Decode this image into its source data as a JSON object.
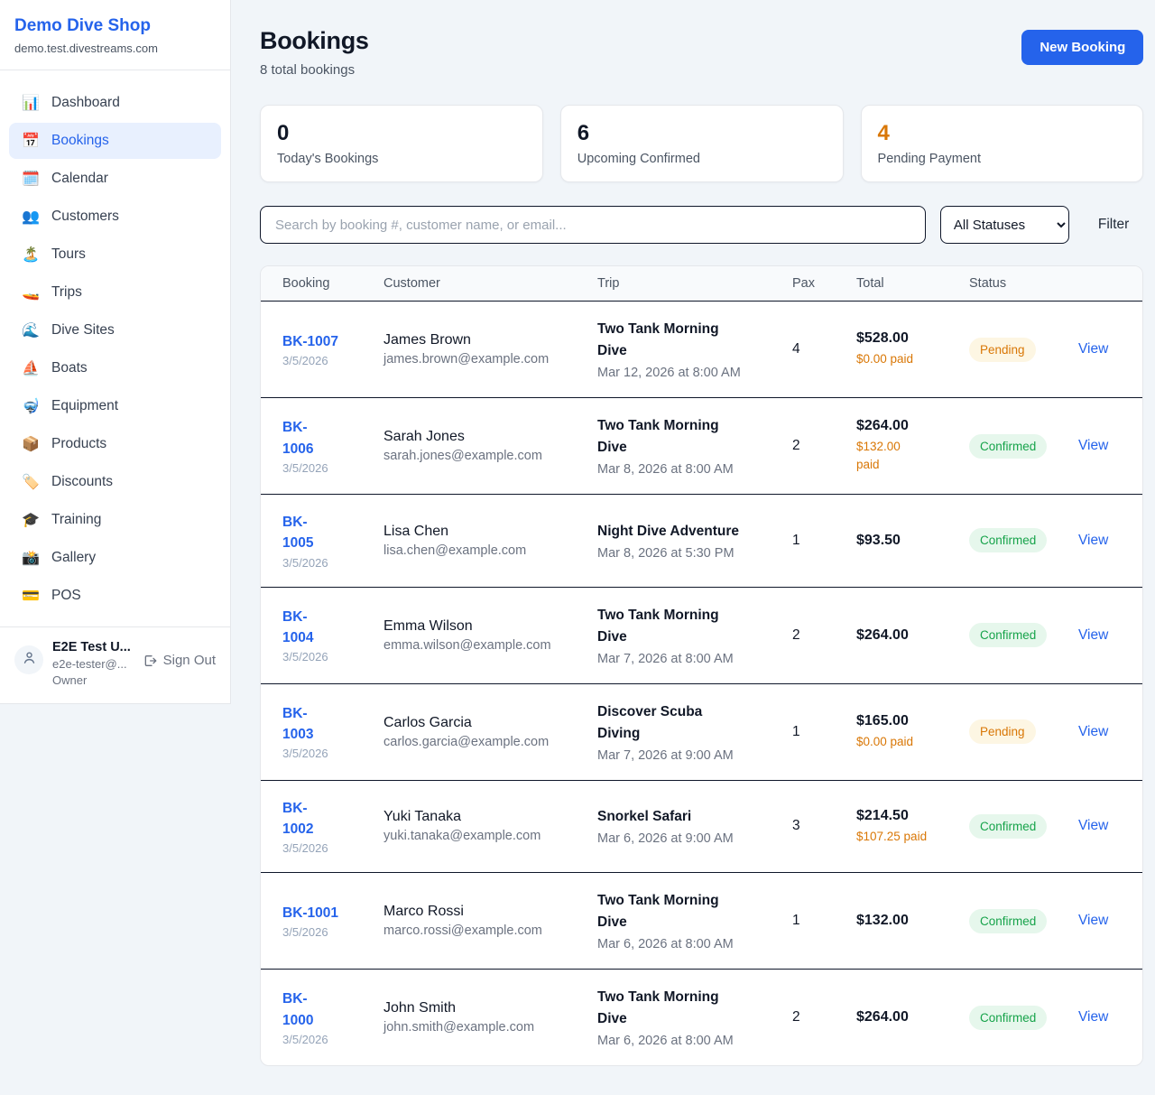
{
  "sidebar": {
    "shop_name": "Demo Dive Shop",
    "shop_domain": "demo.test.divestreams.com",
    "items": [
      {
        "icon_name": "bar-chart-icon",
        "glyph": "📊",
        "label": "Dashboard",
        "active": false
      },
      {
        "icon_name": "calendar-date-icon",
        "glyph": "📅",
        "label": "Bookings",
        "active": true
      },
      {
        "icon_name": "calendar-icon",
        "glyph": "🗓️",
        "label": "Calendar",
        "active": false
      },
      {
        "icon_name": "people-icon",
        "glyph": "👥",
        "label": "Customers",
        "active": false
      },
      {
        "icon_name": "island-icon",
        "glyph": "🏝️",
        "label": "Tours",
        "active": false
      },
      {
        "icon_name": "speedboat-icon",
        "glyph": "🚤",
        "label": "Trips",
        "active": false
      },
      {
        "icon_name": "wave-icon",
        "glyph": "🌊",
        "label": "Dive Sites",
        "active": false
      },
      {
        "icon_name": "sailboat-icon",
        "glyph": "⛵",
        "label": "Boats",
        "active": false
      },
      {
        "icon_name": "dive-mask-icon",
        "glyph": "🤿",
        "label": "Equipment",
        "active": false
      },
      {
        "icon_name": "package-icon",
        "glyph": "📦",
        "label": "Products",
        "active": false
      },
      {
        "icon_name": "tag-icon",
        "glyph": "🏷️",
        "label": "Discounts",
        "active": false
      },
      {
        "icon_name": "graduation-cap-icon",
        "glyph": "🎓",
        "label": "Training",
        "active": false
      },
      {
        "icon_name": "camera-icon",
        "glyph": "📸",
        "label": "Gallery",
        "active": false
      },
      {
        "icon_name": "credit-card-icon",
        "glyph": "💳",
        "label": "POS",
        "active": false
      }
    ],
    "user": {
      "name": "E2E Test U...",
      "email": "e2e-tester@...",
      "role": "Owner",
      "sign_out_label": "Sign Out"
    }
  },
  "header": {
    "title": "Bookings",
    "subtitle": "8 total bookings",
    "new_booking_label": "New Booking"
  },
  "stats": [
    {
      "value": "0",
      "label": "Today's Bookings",
      "value_color": "#111827"
    },
    {
      "value": "6",
      "label": "Upcoming Confirmed",
      "value_color": "#111827"
    },
    {
      "value": "4",
      "label": "Pending Payment",
      "value_color": "#d97706"
    }
  ],
  "filters": {
    "search_placeholder": "Search by booking #, customer name, or email...",
    "status_selected": "All Statuses",
    "filter_label": "Filter"
  },
  "table": {
    "columns": [
      "Booking",
      "Customer",
      "Trip",
      "Pax",
      "Total",
      "Status"
    ],
    "rows": [
      {
        "booking_lines": [
          "BK-1007"
        ],
        "booking_date": "3/5/2026",
        "customer_name": "James Brown",
        "customer_email": "james.brown@example.com",
        "trip_name_lines": [
          "Two Tank Morning",
          "Dive"
        ],
        "trip_datetime": "Mar 12, 2026 at 8:00 AM",
        "pax": "4",
        "total": "$528.00",
        "paid_lines": [
          "$0.00 paid"
        ],
        "status": "Pending",
        "view_label": "View"
      },
      {
        "booking_lines": [
          "BK-",
          "1006"
        ],
        "booking_date": "3/5/2026",
        "customer_name": "Sarah Jones",
        "customer_email": "sarah.jones@example.com",
        "trip_name_lines": [
          "Two Tank Morning",
          "Dive"
        ],
        "trip_datetime": "Mar 8, 2026 at 8:00 AM",
        "pax": "2",
        "total": "$264.00",
        "paid_lines": [
          "$132.00",
          "paid"
        ],
        "status": "Confirmed",
        "view_label": "View"
      },
      {
        "booking_lines": [
          "BK-",
          "1005"
        ],
        "booking_date": "3/5/2026",
        "customer_name": "Lisa Chen",
        "customer_email": "lisa.chen@example.com",
        "trip_name_lines": [
          "Night Dive Adventure"
        ],
        "trip_datetime": "Mar 8, 2026 at 5:30 PM",
        "pax": "1",
        "total": "$93.50",
        "paid_lines": null,
        "status": "Confirmed",
        "view_label": "View"
      },
      {
        "booking_lines": [
          "BK-",
          "1004"
        ],
        "booking_date": "3/5/2026",
        "customer_name": "Emma Wilson",
        "customer_email": "emma.wilson@example.com",
        "trip_name_lines": [
          "Two Tank Morning",
          "Dive"
        ],
        "trip_datetime": "Mar 7, 2026 at 8:00 AM",
        "pax": "2",
        "total": "$264.00",
        "paid_lines": null,
        "status": "Confirmed",
        "view_label": "View"
      },
      {
        "booking_lines": [
          "BK-",
          "1003"
        ],
        "booking_date": "3/5/2026",
        "customer_name": "Carlos Garcia",
        "customer_email": "carlos.garcia@example.com",
        "trip_name_lines": [
          "Discover Scuba",
          "Diving"
        ],
        "trip_datetime": "Mar 7, 2026 at 9:00 AM",
        "pax": "1",
        "total": "$165.00",
        "paid_lines": [
          "$0.00 paid"
        ],
        "status": "Pending",
        "view_label": "View"
      },
      {
        "booking_lines": [
          "BK-",
          "1002"
        ],
        "booking_date": "3/5/2026",
        "customer_name": "Yuki Tanaka",
        "customer_email": "yuki.tanaka@example.com",
        "trip_name_lines": [
          "Snorkel Safari"
        ],
        "trip_datetime": "Mar 6, 2026 at 9:00 AM",
        "pax": "3",
        "total": "$214.50",
        "paid_lines": [
          "$107.25 paid"
        ],
        "status": "Confirmed",
        "view_label": "View"
      },
      {
        "booking_lines": [
          "BK-1001"
        ],
        "booking_date": "3/5/2026",
        "customer_name": "Marco Rossi",
        "customer_email": "marco.rossi@example.com",
        "trip_name_lines": [
          "Two Tank Morning",
          "Dive"
        ],
        "trip_datetime": "Mar 6, 2026 at 8:00 AM",
        "pax": "1",
        "total": "$132.00",
        "paid_lines": null,
        "status": "Confirmed",
        "view_label": "View"
      },
      {
        "booking_lines": [
          "BK-",
          "1000"
        ],
        "booking_date": "3/5/2026",
        "customer_name": "John Smith",
        "customer_email": "john.smith@example.com",
        "trip_name_lines": [
          "Two Tank Morning",
          "Dive"
        ],
        "trip_datetime": "Mar 6, 2026 at 8:00 AM",
        "pax": "2",
        "total": "$264.00",
        "paid_lines": null,
        "status": "Confirmed",
        "view_label": "View"
      }
    ]
  },
  "colors": {
    "brand_blue": "#2563eb",
    "page_background": "#f1f5f9",
    "active_nav_background": "#e8f0fe",
    "pending_text": "#d97706",
    "pending_background": "#fdf6e3",
    "confirmed_text": "#16a34a",
    "confirmed_background": "#e6f7ec",
    "row_border": "#0f172a",
    "card_border": "#e5e7eb"
  }
}
